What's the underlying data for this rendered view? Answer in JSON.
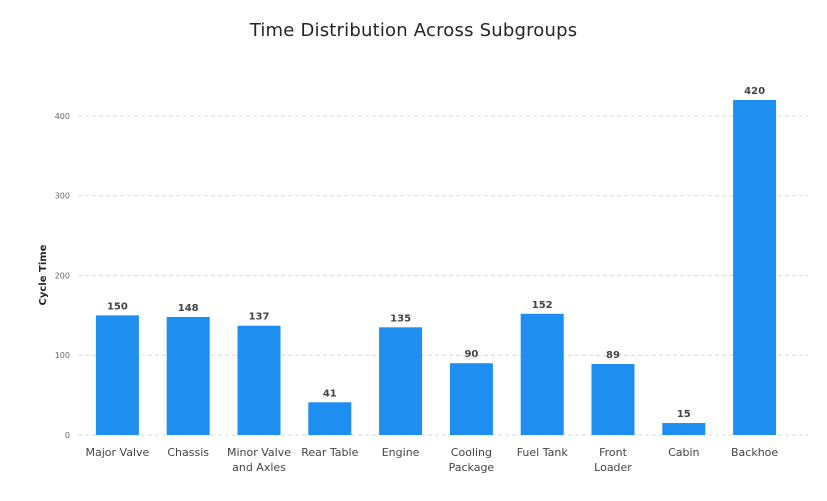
{
  "chart_data": {
    "type": "bar",
    "title": "Time Distribution Across Subgroups",
    "xlabel": "",
    "ylabel": "Cycle Time",
    "categories": [
      [
        "Major Valve"
      ],
      [
        "Chassis"
      ],
      [
        "Minor Valve",
        "and Axles"
      ],
      [
        "Rear Table"
      ],
      [
        "Engine"
      ],
      [
        "Cooling",
        "Package"
      ],
      [
        "Fuel Tank"
      ],
      [
        "Front",
        "Loader"
      ],
      [
        "Cabin"
      ],
      [
        "Backhoe"
      ]
    ],
    "values": [
      150,
      148,
      137,
      41,
      135,
      90,
      152,
      89,
      15,
      420
    ],
    "data_labels": [
      "150",
      "148",
      "137",
      "41",
      "135",
      "90",
      "152",
      "89",
      "15",
      "420"
    ],
    "ylim": [
      0,
      420
    ],
    "yticks": [
      0,
      100,
      200,
      300,
      400
    ],
    "ytick_labels": [
      "0",
      "100",
      "200",
      "300",
      "400"
    ],
    "grid": "horizontal dashed",
    "legend": "none",
    "colors": {
      "bar": "#1f8ef1",
      "grid": "#d9d9d9"
    }
  }
}
